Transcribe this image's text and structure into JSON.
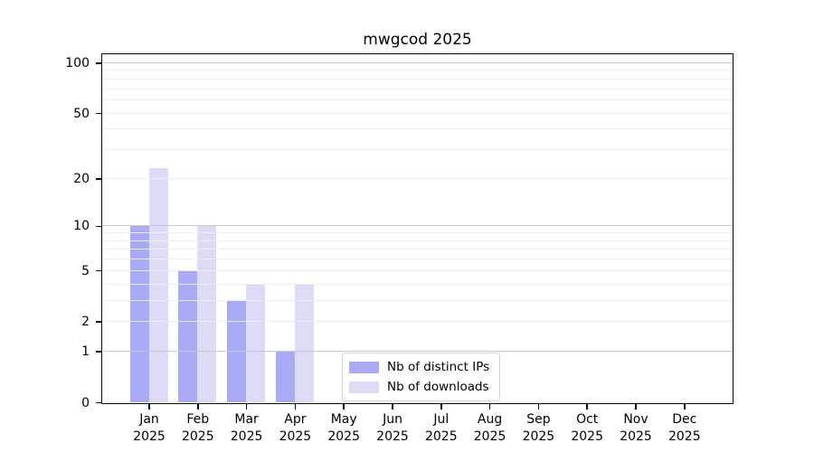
{
  "chart_data": {
    "type": "bar",
    "title": "mwgcod 2025",
    "year": "2025",
    "categories": [
      "Jan",
      "Feb",
      "Mar",
      "Apr",
      "May",
      "Jun",
      "Jul",
      "Aug",
      "Sep",
      "Oct",
      "Nov",
      "Dec"
    ],
    "series": [
      {
        "name": "Nb of distinct IPs",
        "color": "#aaaaf7",
        "values": [
          10,
          5,
          3,
          1,
          0,
          0,
          0,
          0,
          0,
          0,
          0,
          0
        ]
      },
      {
        "name": "Nb of downloads",
        "color": "#dcdcf9",
        "values": [
          23,
          10,
          4,
          4,
          0,
          0,
          0,
          0,
          0,
          0,
          0,
          0
        ]
      }
    ],
    "yticks": [
      0,
      1,
      2,
      5,
      10,
      20,
      50,
      100
    ],
    "yscale": "log10(value+1)",
    "ylim": [
      0,
      113
    ],
    "grid": {
      "major_lines": [
        1,
        10,
        100
      ],
      "minor_lines": [
        2,
        3,
        4,
        5,
        6,
        7,
        8,
        9,
        20,
        30,
        40,
        50,
        60,
        70,
        80,
        90
      ],
      "major_color": "#c9c9c9",
      "minor_color": "#ededed"
    },
    "legend": {
      "position": "lower center",
      "entries": [
        "Nb of distinct IPs",
        "Nb of downloads"
      ]
    },
    "colors": {
      "axis": "#0a0a0a",
      "background": "#ffffff",
      "text": "#000000"
    }
  }
}
